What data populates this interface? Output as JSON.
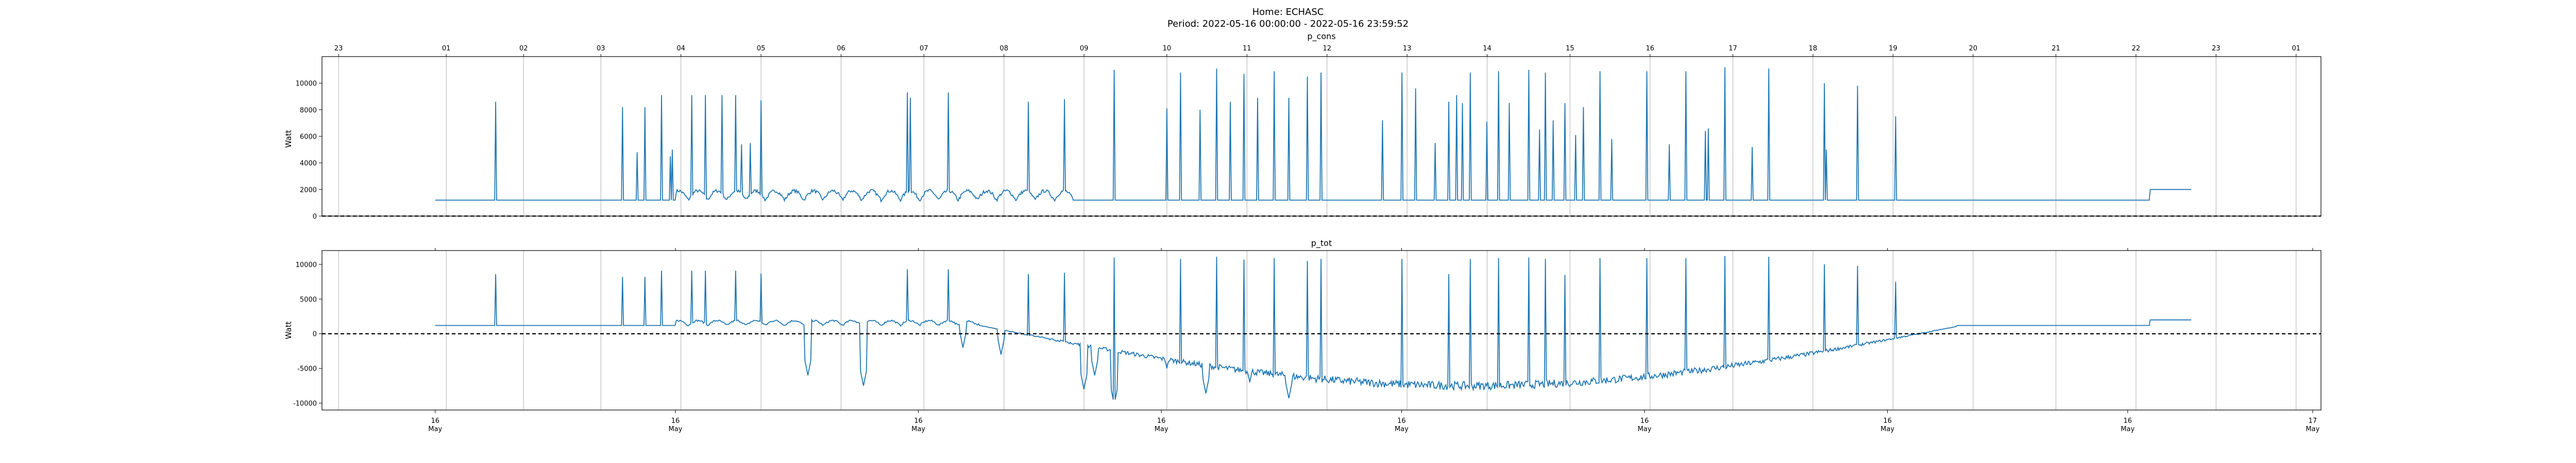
{
  "figure": {
    "title_line1": "Home: ECHASC",
    "title_line2": "Period: 2022-05-16 00:00:00 - 2022-05-16 23:59:52"
  },
  "colors": {
    "series": "#1f77b4",
    "grid": "#b0b0b0",
    "axes": "#000000",
    "zero_line": "#000000"
  },
  "chart_data": [
    {
      "type": "line",
      "title": "p_cons",
      "ylabel": "Watt",
      "xlabel": "",
      "ylim": [
        0,
        12000
      ],
      "yticks": [
        0,
        2000,
        4000,
        6000,
        8000,
        10000
      ],
      "grid": "vertical",
      "zero_line": "dashed",
      "top_tick_labels": [
        "23",
        "01",
        "02",
        "03",
        "04",
        "05",
        "06",
        "07",
        "08",
        "09",
        "10",
        "11",
        "12",
        "13",
        "14",
        "15",
        "16",
        "17",
        "18",
        "19",
        "20",
        "21",
        "22",
        "23",
        "01"
      ],
      "bottom_tick_labels": [],
      "series": [
        {
          "baseline_watts": 1200,
          "end_watts": 2000,
          "spikes": [
            [
              3.15,
              8600
            ],
            [
              5.45,
              8200
            ],
            [
              5.7,
              4800
            ],
            [
              5.85,
              8200
            ],
            [
              6.15,
              9100
            ],
            [
              6.3,
              4500
            ],
            [
              6.35,
              5000
            ],
            [
              6.7,
              9100
            ],
            [
              6.95,
              9100
            ],
            [
              7.25,
              9100
            ],
            [
              7.5,
              9100
            ],
            [
              7.6,
              5400
            ],
            [
              7.75,
              5500
            ],
            [
              7.95,
              8700
            ],
            [
              10.6,
              9300
            ],
            [
              10.65,
              8900
            ],
            [
              11.35,
              9300
            ],
            [
              12.8,
              8600
            ],
            [
              13.45,
              8800
            ],
            [
              14.35,
              11000
            ],
            [
              15.3,
              8100
            ],
            [
              15.55,
              10800
            ],
            [
              15.9,
              8000
            ],
            [
              16.2,
              11100
            ],
            [
              16.45,
              8600
            ],
            [
              16.7,
              10700
            ],
            [
              16.95,
              8900
            ],
            [
              17.25,
              10900
            ],
            [
              17.5,
              8900
            ],
            [
              17.85,
              10500
            ],
            [
              18.1,
              10800
            ],
            [
              19.2,
              7200
            ],
            [
              19.55,
              10800
            ],
            [
              19.8,
              9600
            ],
            [
              20.15,
              5500
            ],
            [
              20.4,
              8600
            ],
            [
              20.55,
              9100
            ],
            [
              20.65,
              8500
            ],
            [
              20.8,
              10800
            ],
            [
              21.1,
              7100
            ],
            [
              21.3,
              10900
            ],
            [
              21.5,
              8500
            ],
            [
              21.85,
              11000
            ],
            [
              22.05,
              6500
            ],
            [
              22.15,
              10800
            ],
            [
              22.3,
              7200
            ],
            [
              22.5,
              8500
            ],
            [
              22.7,
              6100
            ],
            [
              22.85,
              8200
            ],
            [
              23.15,
              10900
            ],
            [
              23.35,
              5800
            ],
            [
              24.0,
              10900
            ],
            [
              24.4,
              5400
            ],
            [
              24.7,
              10900
            ],
            [
              25.05,
              6400
            ],
            [
              25.1,
              6600
            ],
            [
              25.4,
              11200
            ],
            [
              25.9,
              5200
            ],
            [
              26.2,
              11100
            ],
            [
              27.2,
              10000
            ],
            [
              27.25,
              5000
            ],
            [
              27.8,
              9800
            ],
            [
              28.5,
              7500
            ]
          ]
        }
      ]
    },
    {
      "type": "line",
      "title": "p_tot",
      "ylabel": "Watt",
      "xlabel": "",
      "ylim": [
        -11000,
        12000
      ],
      "yticks": [
        -10000,
        -5000,
        0,
        5000,
        10000
      ],
      "grid": "vertical",
      "zero_line": "dashed",
      "top_tick_labels": [],
      "bottom_tick_labels": [
        "16\nMay",
        "16\nMay",
        "16\nMay",
        "16\nMay",
        "16\nMay",
        "16\nMay",
        "16\nMay",
        "16\nMay",
        "17\nMay"
      ],
      "series": [
        {
          "baseline_watts": 1200,
          "end_watts": 2000,
          "solar_start": 5.6,
          "solar_end": 19.6,
          "solar_peak_watts": -7500,
          "spikes": [
            [
              3.15,
              8600
            ],
            [
              5.45,
              8200
            ],
            [
              5.85,
              8200
            ],
            [
              6.15,
              9100
            ],
            [
              6.7,
              9100
            ],
            [
              6.95,
              9100
            ],
            [
              7.5,
              9100
            ],
            [
              7.95,
              8700
            ],
            [
              10.6,
              9300
            ],
            [
              11.35,
              9300
            ],
            [
              12.8,
              8600
            ],
            [
              13.45,
              8800
            ],
            [
              14.35,
              11000
            ],
            [
              15.55,
              10800
            ],
            [
              16.2,
              11100
            ],
            [
              16.7,
              10700
            ],
            [
              17.25,
              10900
            ],
            [
              17.85,
              10500
            ],
            [
              18.1,
              10800
            ],
            [
              19.55,
              10800
            ],
            [
              20.4,
              8600
            ],
            [
              20.8,
              10800
            ],
            [
              21.3,
              10900
            ],
            [
              21.85,
              11000
            ],
            [
              22.15,
              10800
            ],
            [
              22.5,
              8500
            ],
            [
              23.15,
              10900
            ],
            [
              24.0,
              10900
            ],
            [
              24.7,
              10900
            ],
            [
              25.4,
              11200
            ],
            [
              26.2,
              11100
            ],
            [
              27.2,
              10000
            ],
            [
              27.8,
              9800
            ],
            [
              28.5,
              7500
            ]
          ],
          "dips": [
            [
              8.8,
              -6000
            ],
            [
              9.8,
              -7500
            ],
            [
              11.6,
              -2000
            ],
            [
              12.3,
              -3000
            ],
            [
              13.8,
              -8000
            ],
            [
              14.0,
              -6000
            ],
            [
              14.35,
              -10200
            ],
            [
              15.3,
              -5000
            ],
            [
              16.0,
              -8600
            ],
            [
              16.8,
              -7000
            ],
            [
              17.5,
              -9300
            ],
            [
              18.1,
              -6500
            ],
            [
              19.0,
              -5000
            ],
            [
              20.2,
              -7000
            ],
            [
              21.0,
              -5500
            ],
            [
              21.9,
              -7500
            ],
            [
              22.5,
              -5200
            ],
            [
              23.0,
              -4000
            ],
            [
              23.8,
              -3500
            ]
          ]
        }
      ]
    }
  ]
}
